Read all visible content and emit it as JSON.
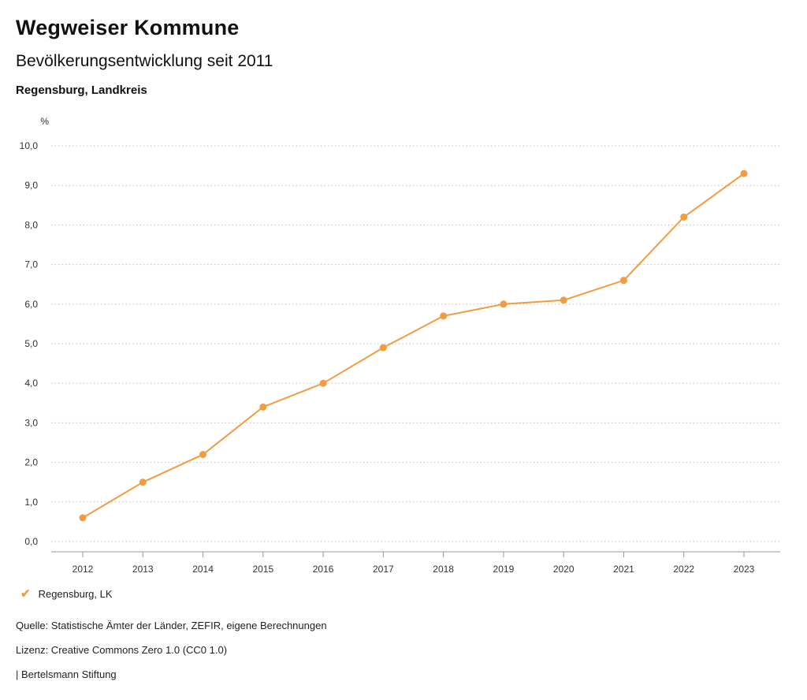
{
  "header": {
    "title": "Wegweiser Kommune",
    "subtitle": "Bevölkerungsentwicklung seit 2011",
    "region": "Regensburg, Landkreis"
  },
  "chart_data": {
    "type": "line",
    "unit": "%",
    "categories": [
      "2012",
      "2013",
      "2014",
      "2015",
      "2016",
      "2017",
      "2018",
      "2019",
      "2020",
      "2021",
      "2022",
      "2023"
    ],
    "series": [
      {
        "name": "Regensburg, LK",
        "values": [
          0.6,
          1.5,
          2.2,
          3.4,
          4.0,
          4.9,
          5.7,
          6.0,
          6.1,
          6.6,
          8.2,
          9.3
        ],
        "color": "#F29B40"
      }
    ],
    "title": "Bevölkerungsentwicklung seit 2011",
    "xlabel": "",
    "ylabel": "%",
    "ylim": [
      0,
      10
    ],
    "ytick_step": 1,
    "grid": "horizontal-dotted",
    "legend_position": "bottom-left"
  },
  "legend": {
    "check_icon": "✔",
    "items": [
      {
        "label": "Regensburg, LK",
        "color": "#F29B40"
      }
    ]
  },
  "footer": {
    "source": "Quelle: Statistische Ämter der Länder, ZEFIR, eigene Berechnungen",
    "license": "Lizenz: Creative Commons Zero 1.0 (CC0 1.0)",
    "attribution": "| Bertelsmann Stiftung"
  },
  "colors": {
    "accent": "#F29B40",
    "grid": "#bfbfbf",
    "axis": "#999999",
    "text": "#333333"
  }
}
